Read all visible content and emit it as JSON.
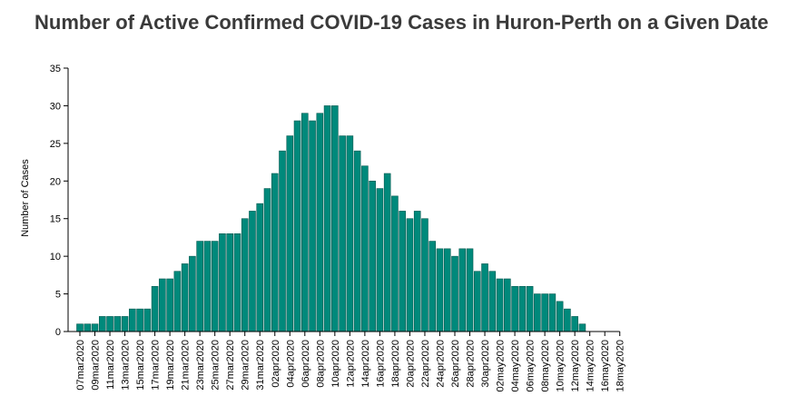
{
  "chart_data": {
    "type": "bar",
    "title": "Number of Active Confirmed COVID-19 Cases in Huron-Perth on a Given Date",
    "xlabel": "",
    "ylabel": "Number of Cases",
    "ylim": [
      0,
      35
    ],
    "yticks": [
      0,
      5,
      10,
      15,
      20,
      25,
      30,
      35
    ],
    "bar_color": "#00897b",
    "bar_stroke": "#00594f",
    "grid": false,
    "categories": [
      "07mar2020",
      "08mar2020",
      "09mar2020",
      "10mar2020",
      "11mar2020",
      "12mar2020",
      "13mar2020",
      "14mar2020",
      "15mar2020",
      "16mar2020",
      "17mar2020",
      "18mar2020",
      "19mar2020",
      "20mar2020",
      "21mar2020",
      "22mar2020",
      "23mar2020",
      "24mar2020",
      "25mar2020",
      "26mar2020",
      "27mar2020",
      "28mar2020",
      "29mar2020",
      "30mar2020",
      "31mar2020",
      "01apr2020",
      "02apr2020",
      "03apr2020",
      "04apr2020",
      "05apr2020",
      "06apr2020",
      "07apr2020",
      "08apr2020",
      "09apr2020",
      "10apr2020",
      "11apr2020",
      "12apr2020",
      "13apr2020",
      "14apr2020",
      "15apr2020",
      "16apr2020",
      "17apr2020",
      "18apr2020",
      "19apr2020",
      "20apr2020",
      "21apr2020",
      "22apr2020",
      "23apr2020",
      "24apr2020",
      "25apr2020",
      "26apr2020",
      "27apr2020",
      "28apr2020",
      "29apr2020",
      "30apr2020",
      "01may2020",
      "02may2020",
      "03may2020",
      "04may2020",
      "05may2020",
      "06may2020",
      "07may2020",
      "08may2020",
      "09may2020",
      "10may2020",
      "11may2020",
      "12may2020",
      "13may2020",
      "14may2020",
      "15may2020",
      "16may2020",
      "17may2020",
      "18may2020"
    ],
    "tick_labels": [
      "07mar2020",
      "09mar2020",
      "11mar2020",
      "13mar2020",
      "15mar2020",
      "17mar2020",
      "19mar2020",
      "21mar2020",
      "23mar2020",
      "25mar2020",
      "27mar2020",
      "29mar2020",
      "31mar2020",
      "02apr2020",
      "04apr2020",
      "06apr2020",
      "08apr2020",
      "10apr2020",
      "12apr2020",
      "14apr2020",
      "16apr2020",
      "18apr2020",
      "20apr2020",
      "22apr2020",
      "24apr2020",
      "26apr2020",
      "28apr2020",
      "30apr2020",
      "02may2020",
      "04may2020",
      "06may2020",
      "08may2020",
      "10may2020",
      "12may2020",
      "14may2020",
      "16may2020",
      "18may2020"
    ],
    "values": [
      1,
      1,
      1,
      2,
      2,
      2,
      2,
      3,
      3,
      3,
      6,
      7,
      7,
      8,
      9,
      10,
      12,
      12,
      12,
      13,
      13,
      13,
      15,
      16,
      17,
      19,
      21,
      24,
      26,
      28,
      29,
      28,
      29,
      30,
      30,
      26,
      26,
      24,
      22,
      20,
      19,
      21,
      18,
      16,
      15,
      16,
      15,
      12,
      11,
      11,
      10,
      11,
      11,
      8,
      9,
      8,
      7,
      7,
      6,
      6,
      6,
      5,
      5,
      5,
      4,
      3,
      2,
      1,
      0,
      0,
      0,
      0,
      0
    ]
  }
}
